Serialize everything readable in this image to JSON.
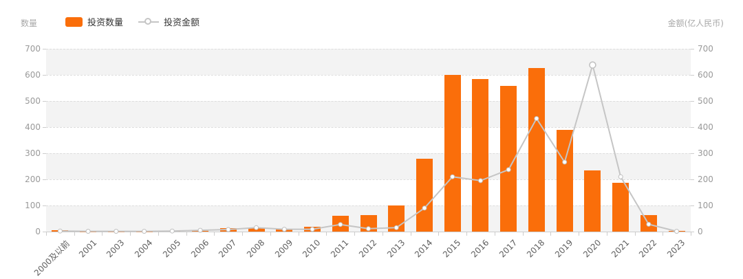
{
  "header": {
    "left_axis_name": "数量",
    "right_axis_name": "金额(亿人民币)"
  },
  "legend": {
    "items": [
      {
        "label": "投资数量",
        "series_type": "bar",
        "color": "#fa6e0a"
      },
      {
        "label": "投资金额",
        "series_type": "line",
        "color": "#c5c5c5"
      }
    ]
  },
  "chart_data": {
    "type": "bar",
    "subtype": "bar+line dual axis",
    "categories": [
      "2000及以前",
      "2001",
      "2003",
      "2004",
      "2005",
      "2006",
      "2007",
      "2008",
      "2009",
      "2010",
      "2011",
      "2012",
      "2013",
      "2014",
      "2015",
      "2016",
      "2017",
      "2018",
      "2019",
      "2020",
      "2021",
      "2022",
      "2023"
    ],
    "series": [
      {
        "name": "投资数量",
        "type": "bar",
        "axis": "left",
        "color": "#fa6e0a",
        "values": [
          4,
          1,
          1,
          1,
          2,
          3,
          12,
          15,
          10,
          18,
          60,
          62,
          100,
          278,
          600,
          583,
          558,
          627,
          390,
          235,
          186,
          62,
          2
        ]
      },
      {
        "name": "投资金额",
        "type": "line",
        "axis": "right",
        "color": "#c5c5c5",
        "values": [
          2,
          1,
          1,
          1,
          2,
          5,
          8,
          15,
          9,
          9,
          27,
          11,
          15,
          90,
          210,
          195,
          237,
          433,
          266,
          638,
          210,
          28,
          1
        ]
      }
    ],
    "left_axis": {
      "name": "数量",
      "min": 0,
      "max": 700,
      "ticks": [
        0,
        100,
        200,
        300,
        400,
        500,
        600,
        700
      ]
    },
    "right_axis": {
      "name": "金额(亿人民币)",
      "min": 0,
      "max": 700,
      "ticks": [
        0,
        100,
        200,
        300,
        400,
        500,
        600,
        700
      ]
    },
    "highlight_point": {
      "category": "2020",
      "value": 638
    },
    "grid": "horizontal dashed lines, alternating gray/white background bands",
    "legend_position": "top-left",
    "marker_style": "open white circles with gray stroke"
  }
}
